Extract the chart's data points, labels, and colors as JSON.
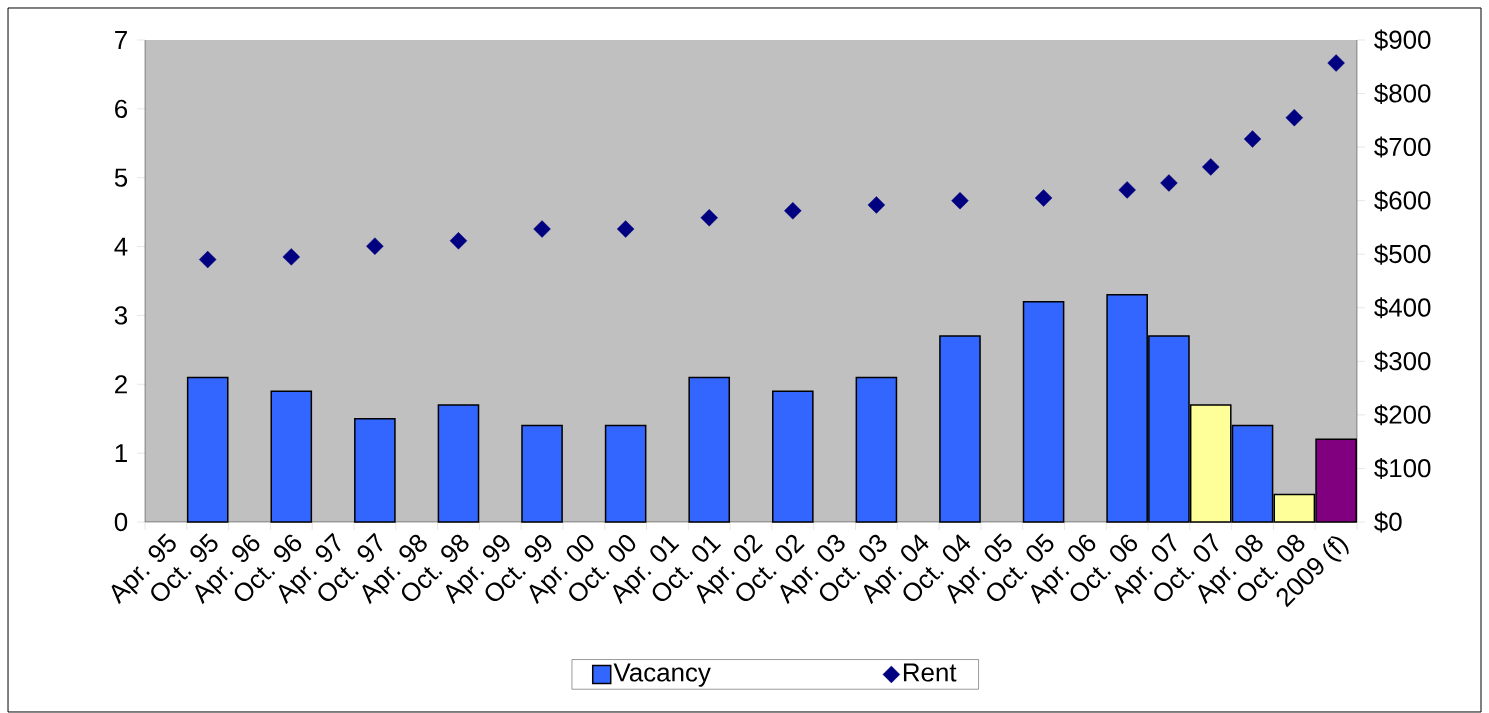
{
  "chart_data": {
    "type": "bar",
    "categories": [
      "Apr. 95",
      "Oct. 95",
      "Apr. 96",
      "Oct. 96",
      "Apr. 97",
      "Oct. 97",
      "Apr. 98",
      "Oct. 98",
      "Apr. 99",
      "Oct. 99",
      "Apr. 00",
      "Oct. 00",
      "Apr. 01",
      "Oct. 01",
      "Apr. 02",
      "Oct. 02",
      "Apr. 03",
      "Oct. 03",
      "Apr. 04",
      "Oct. 04",
      "Apr. 05",
      "Oct. 05",
      "Apr. 06",
      "Oct. 06",
      "Apr. 07",
      "Oct. 07",
      "Apr. 08",
      "Oct. 08",
      "2009 (f)"
    ],
    "series": [
      {
        "name": "Vacancy",
        "color": "#3366ff",
        "values": [
          null,
          2.1,
          null,
          1.9,
          null,
          1.5,
          null,
          1.7,
          null,
          1.4,
          null,
          1.4,
          null,
          2.1,
          null,
          1.9,
          null,
          2.1,
          null,
          2.7,
          null,
          3.2,
          null,
          3.3,
          2.7,
          1.7,
          1.4,
          0.4,
          1.2
        ],
        "colors": [
          null,
          "#3366ff",
          null,
          "#3366ff",
          null,
          "#3366ff",
          null,
          "#3366ff",
          null,
          "#3366ff",
          null,
          "#3366ff",
          null,
          "#3366ff",
          null,
          "#3366ff",
          null,
          "#3366ff",
          null,
          "#3366ff",
          null,
          "#3366ff",
          null,
          "#3366ff",
          "#3366ff",
          "#ffff99",
          "#3366ff",
          "#ffff99",
          "#800080"
        ]
      },
      {
        "name": "Rent",
        "type": "scatter",
        "axis": "y2",
        "color": "#000080",
        "marker": "diamond",
        "values": [
          null,
          490,
          null,
          495,
          null,
          515,
          null,
          525,
          null,
          547,
          null,
          547,
          null,
          568,
          null,
          581,
          null,
          592,
          null,
          600,
          null,
          605,
          null,
          620,
          633,
          663,
          715,
          755,
          857
        ]
      }
    ],
    "ylim": [
      0,
      7
    ],
    "yticks": [
      0,
      1,
      2,
      3,
      4,
      5,
      6,
      7
    ],
    "y2lim": [
      0,
      900
    ],
    "y2ticks": [
      {
        "value": 0,
        "label": "$0"
      },
      {
        "value": 100,
        "label": "$100"
      },
      {
        "value": 200,
        "label": "$200"
      },
      {
        "value": 300,
        "label": "$300"
      },
      {
        "value": 400,
        "label": "$400"
      },
      {
        "value": 500,
        "label": "$500"
      },
      {
        "value": 600,
        "label": "$600"
      },
      {
        "value": 700,
        "label": "$700"
      },
      {
        "value": 800,
        "label": "$800"
      },
      {
        "value": 900,
        "label": "$900"
      }
    ],
    "grid": false,
    "legend": "bottom"
  }
}
